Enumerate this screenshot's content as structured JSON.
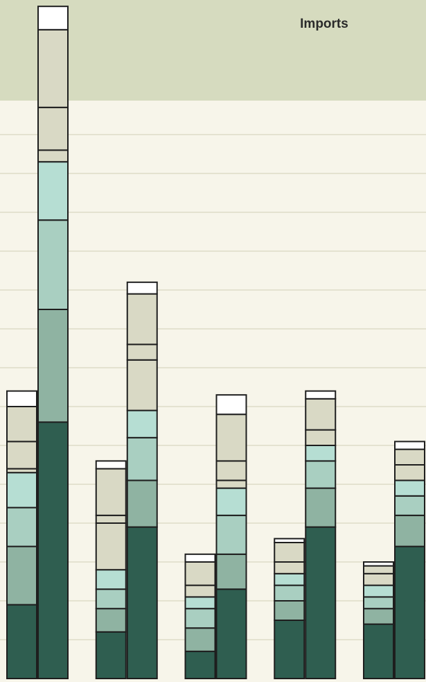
{
  "chart_data": {
    "type": "bar",
    "stacked": true,
    "title": "Imports",
    "categories": [
      null,
      null,
      null,
      null,
      null,
      null,
      null,
      null,
      null,
      null
    ],
    "ylim": [
      0,
      17.5
    ],
    "series": [
      {
        "color": "#2f5e50",
        "values": [
          1.9,
          6.6,
          1.2,
          3.9,
          0.7,
          2.3,
          1.5,
          3.9,
          1.4,
          3.4
        ]
      },
      {
        "color": "#8fb3a2",
        "values": [
          1.5,
          2.9,
          0.6,
          1.2,
          0.6,
          0.9,
          0.5,
          1.0,
          0.4,
          0.8
        ]
      },
      {
        "color": "#a9cfc1",
        "values": [
          1.0,
          2.3,
          0.5,
          1.1,
          0.5,
          1.0,
          0.4,
          0.7,
          0.3,
          0.5
        ]
      },
      {
        "color": "#b6ded3",
        "values": [
          0.9,
          1.5,
          0.5,
          0.7,
          0.3,
          0.7,
          0.3,
          0.4,
          0.3,
          0.4
        ]
      },
      {
        "color": "#d9d9c5",
        "values": [
          0.1,
          0.3,
          1.2,
          1.3,
          0.3,
          0.2,
          0.3,
          0.4,
          0.3,
          0.4
        ]
      },
      {
        "color": "#d9d9c5",
        "values": [
          0.7,
          1.1,
          0.2,
          0.4,
          0.6,
          0.5,
          0.5,
          0.8,
          0.2,
          0.4
        ]
      },
      {
        "color": "#d9d9c5",
        "values": [
          0.9,
          2.0,
          1.2,
          1.3,
          null,
          1.2,
          null,
          null,
          null,
          null
        ]
      },
      {
        "color": "#ffffff",
        "values": [
          0.4,
          0.6,
          0.2,
          0.3,
          0.2,
          0.5,
          0.1,
          0.2,
          0.1,
          0.2
        ]
      }
    ]
  }
}
